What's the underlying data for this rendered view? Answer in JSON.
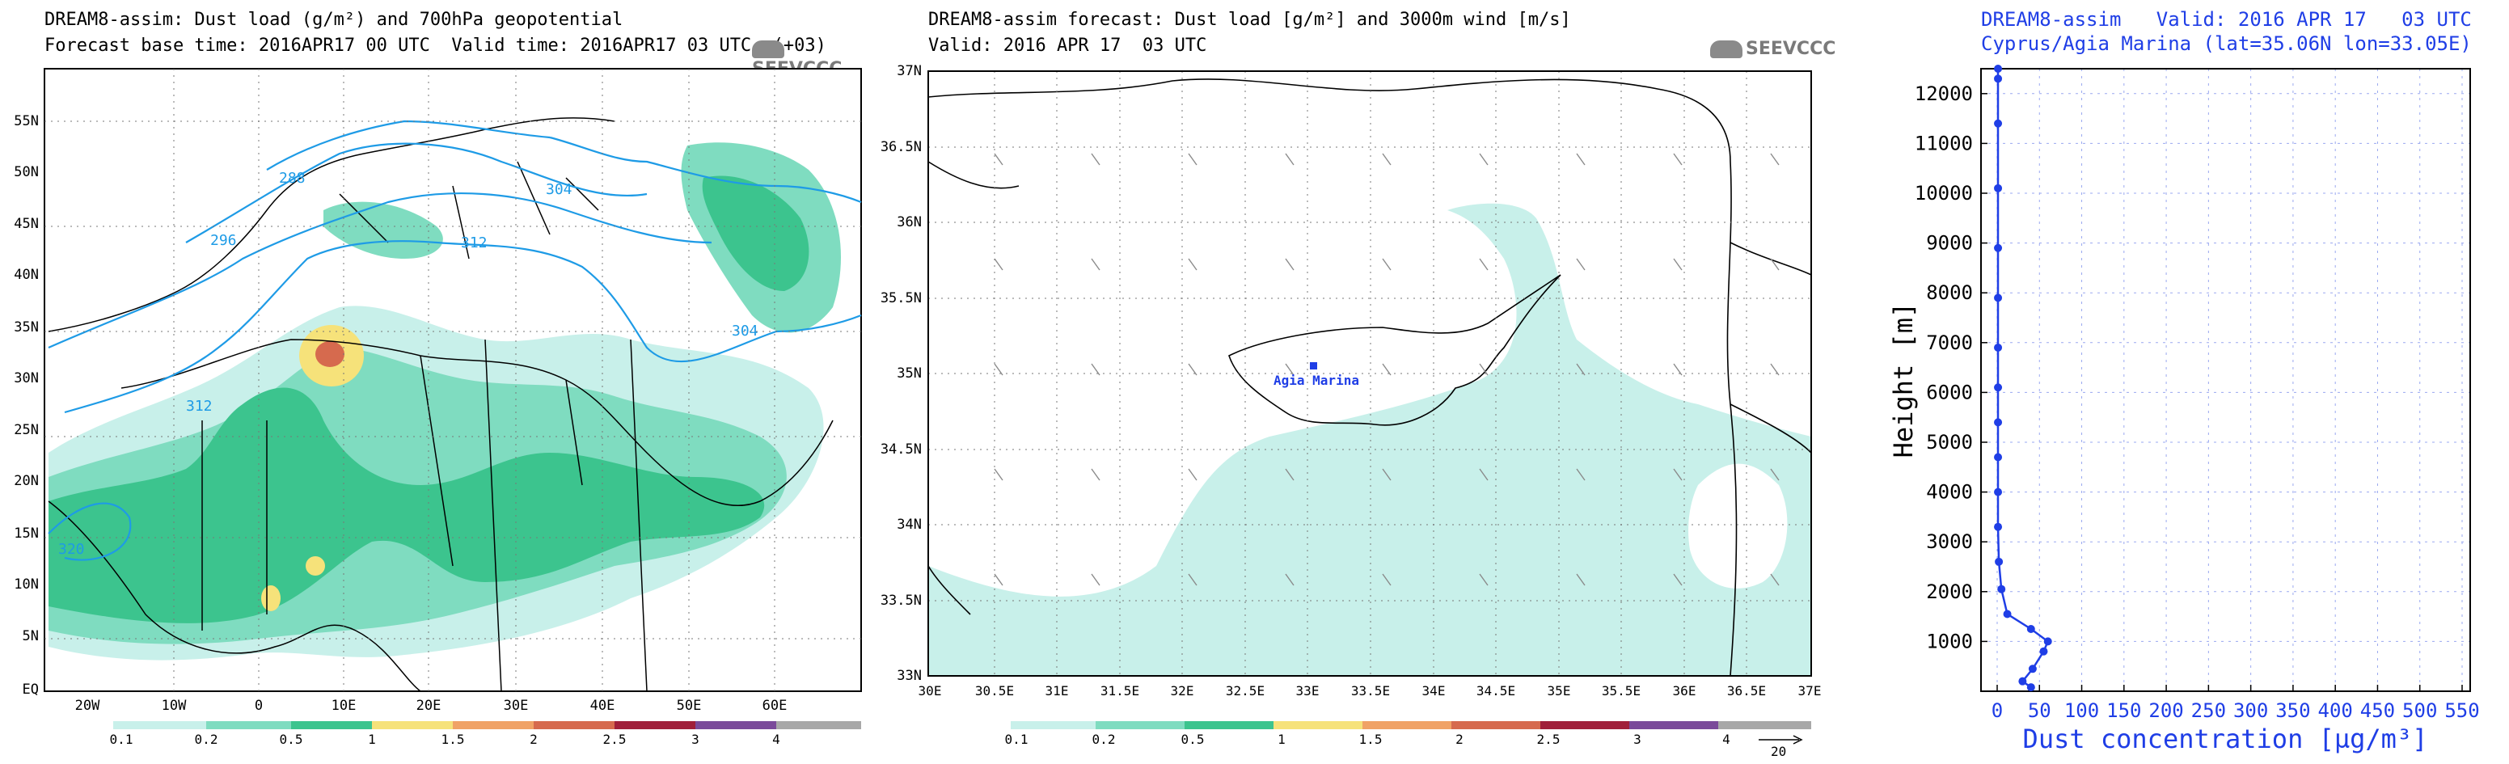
{
  "panel1": {
    "title": "DREAM8-assim: Dust load (g/m²) and 700hPa geopotential",
    "subtitle": "Forecast base time: 2016APR17 00 UTC  Valid time: 2016APR17 03 UTC  (+03)",
    "logo": "SEEVCCC",
    "lat_labels": [
      "55N",
      "50N",
      "45N",
      "40N",
      "35N",
      "30N",
      "25N",
      "20N",
      "15N",
      "10N",
      "5N",
      "EQ"
    ],
    "lon_labels": [
      "20W",
      "10W",
      "0",
      "10E",
      "20E",
      "30E",
      "40E",
      "50E",
      "60E"
    ],
    "contour_labels": [
      "288",
      "296",
      "304",
      "304",
      "312",
      "312",
      "320"
    ],
    "colorbar": {
      "labels": [
        "0.1",
        "0.2",
        "0.5",
        "1",
        "1.5",
        "2",
        "2.5",
        "3",
        "4"
      ],
      "colors": [
        "#c8f0ea",
        "#7fdcc0",
        "#3cc48e",
        "#f6e27a",
        "#f0a266",
        "#d66a4e",
        "#a01f3a",
        "#7a4a9a",
        "#a8a8a8"
      ]
    }
  },
  "panel2": {
    "title": "DREAM8-assim forecast: Dust load [g/m²] and 3000m wind [m/s]",
    "subtitle": "Valid: 2016 APR 17  03 UTC",
    "logo": "SEEVCCC",
    "station_label": "Agia Marina",
    "lat_labels": [
      "37N",
      "36.5N",
      "36N",
      "35.5N",
      "35N",
      "34.5N",
      "34N",
      "33.5N",
      "33N"
    ],
    "lon_labels": [
      "30E",
      "30.5E",
      "31E",
      "31.5E",
      "32E",
      "32.5E",
      "33E",
      "33.5E",
      "34E",
      "34.5E",
      "35E",
      "35.5E",
      "36E",
      "36.5E",
      "37E"
    ],
    "colorbar_labels": [
      "0.1",
      "0.2",
      "0.5",
      "1",
      "1.5",
      "2",
      "2.5",
      "3",
      "4"
    ],
    "wind_ref": "20"
  },
  "panel3": {
    "title_line1": "DREAM8-assim   Valid: 2016 APR 17   03 UTC",
    "title_line2": "Cyprus/Agia Marina (lat=35.06N lon=33.05E)",
    "color": "#1f3ee6"
  },
  "chart_data": [
    {
      "type": "line",
      "title": "DREAM8-assim   Valid: 2016 APR 17   03 UTC",
      "subtitle": "Cyprus/Agia Marina (lat=35.06N lon=33.05E)",
      "xlabel": "Dust concentration [µg/m³]",
      "ylabel": "Height [m]",
      "xlim": [
        0,
        550
      ],
      "ylim": [
        0,
        12500
      ],
      "xticks": [
        0,
        50,
        100,
        150,
        200,
        250,
        300,
        350,
        400,
        450,
        500,
        550
      ],
      "yticks": [
        1000,
        2000,
        3000,
        4000,
        5000,
        6000,
        7000,
        8000,
        9000,
        10000,
        11000,
        12000
      ],
      "grid": true,
      "series": [
        {
          "x": [
            40,
            30,
            42,
            55,
            60,
            40,
            12,
            5,
            2,
            1,
            1,
            1,
            1,
            1,
            1,
            1,
            1,
            1,
            1,
            1,
            1
          ],
          "y": [
            80,
            200,
            450,
            800,
            1000,
            1250,
            1550,
            2050,
            2600,
            3300,
            4000,
            4700,
            5400,
            6100,
            6900,
            7900,
            8900,
            10100,
            11400,
            12300,
            12500
          ]
        }
      ]
    }
  ]
}
